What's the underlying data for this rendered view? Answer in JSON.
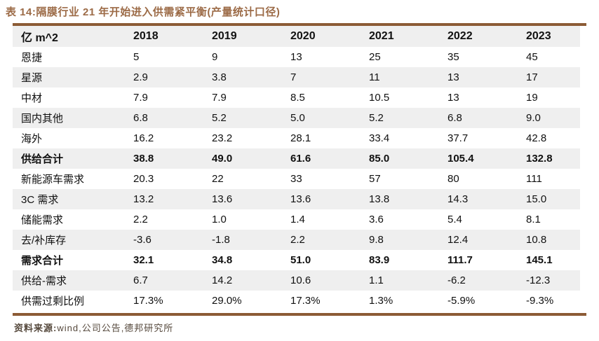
{
  "title": "表 14:隔膜行业 21 年开始进入供需紧平衡(产量统计口径)",
  "footer": {
    "source_label": "资料来源:",
    "source_text": "wind,公司公告,德邦研究所"
  },
  "colors": {
    "title_brown": "#9C6B47",
    "border_brown": "#8C5B35",
    "stripe_gray": "#EFEFEF",
    "body_text": "#111111",
    "footer_text": "#55483C"
  },
  "chart_data": {
    "type": "table",
    "unit_header": "亿 m^2",
    "columns": [
      "2018",
      "2019",
      "2020",
      "2021",
      "2022",
      "2023"
    ],
    "rows": [
      {
        "label": "恩捷",
        "values": [
          "5",
          "9",
          "13",
          "25",
          "35",
          "45"
        ],
        "bold": false
      },
      {
        "label": "星源",
        "values": [
          "2.9",
          "3.8",
          "7",
          "11",
          "13",
          "17"
        ],
        "bold": false
      },
      {
        "label": "中材",
        "values": [
          "7.9",
          "7.9",
          "8.5",
          "10.5",
          "13",
          "19"
        ],
        "bold": false
      },
      {
        "label": "国内其他",
        "values": [
          "6.8",
          "5.2",
          "5.0",
          "5.2",
          "6.8",
          "9.0"
        ],
        "bold": false
      },
      {
        "label": "海外",
        "values": [
          "16.2",
          "23.2",
          "28.1",
          "33.4",
          "37.7",
          "42.8"
        ],
        "bold": false
      },
      {
        "label": "供给合计",
        "values": [
          "38.8",
          "49.0",
          "61.6",
          "85.0",
          "105.4",
          "132.8"
        ],
        "bold": true
      },
      {
        "label": "新能源车需求",
        "values": [
          "20.3",
          "22",
          "33",
          "57",
          "80",
          "111"
        ],
        "bold": false
      },
      {
        "label": "3C 需求",
        "values": [
          "13.2",
          "13.6",
          "13.6",
          "13.8",
          "14.3",
          "15.0"
        ],
        "bold": false
      },
      {
        "label": "储能需求",
        "values": [
          "2.2",
          "1.0",
          "1.4",
          "3.6",
          "5.4",
          "8.1"
        ],
        "bold": false
      },
      {
        "label": "去/补库存",
        "values": [
          "-3.6",
          "-1.8",
          "2.2",
          "9.8",
          "12.4",
          "10.8"
        ],
        "bold": false
      },
      {
        "label": "需求合计",
        "values": [
          "32.1",
          "34.8",
          "51.0",
          "83.9",
          "111.7",
          "145.1"
        ],
        "bold": true
      },
      {
        "label": "供给-需求",
        "values": [
          "6.7",
          "14.2",
          "10.6",
          "1.1",
          "-6.2",
          "-12.3"
        ],
        "bold": false
      },
      {
        "label": "供需过剩比例",
        "values": [
          "17.3%",
          "29.0%",
          "17.3%",
          "1.3%",
          "-5.9%",
          "-9.3%"
        ],
        "bold": false
      }
    ]
  }
}
